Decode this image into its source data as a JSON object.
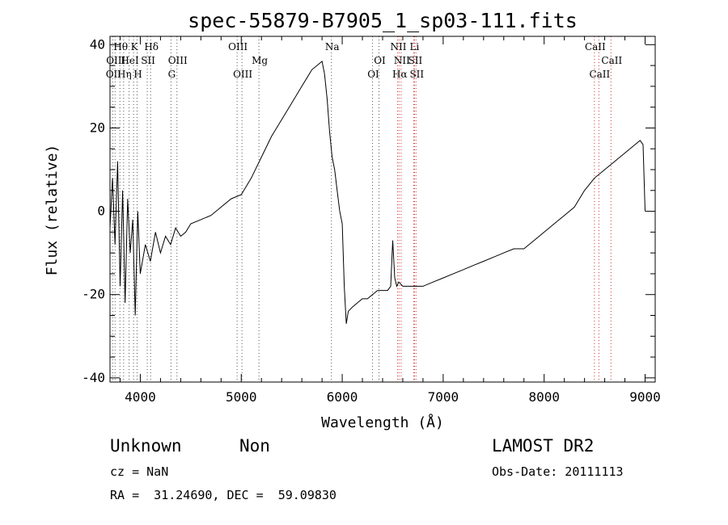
{
  "chart_data": {
    "type": "line",
    "title": "spec-55879-B7905_1_sp03-111.fits",
    "xlabel": "Wavelength (Å)",
    "ylabel": "Flux (relative)",
    "xlim": [
      3700,
      9100
    ],
    "ylim": [
      -41,
      42
    ],
    "xticks": [
      4000,
      5000,
      6000,
      7000,
      8000,
      9000
    ],
    "yticks": [
      -40,
      -20,
      0,
      20,
      40
    ],
    "grid": false,
    "series": [
      {
        "x": [
          3700,
          3725,
          3750,
          3775,
          3800,
          3825,
          3850,
          3875,
          3900,
          3925,
          3950,
          3975,
          4000,
          4050,
          4100,
          4150,
          4200,
          4250,
          4300,
          4350,
          4400,
          4450,
          4500,
          4600,
          4700,
          4800,
          4900,
          5000,
          5100,
          5200,
          5300,
          5400,
          5500,
          5600,
          5700,
          5750,
          5800,
          5825,
          5850,
          5875,
          5900,
          5925,
          5950,
          5975,
          6000,
          6020,
          6040,
          6060,
          6100,
          6150,
          6200,
          6250,
          6300,
          6350,
          6400,
          6450,
          6480,
          6500,
          6520,
          6540,
          6560,
          6600,
          6650,
          6700,
          6750,
          6800,
          6900,
          7000,
          7100,
          7200,
          7300,
          7400,
          7500,
          7600,
          7700,
          7800,
          7900,
          8000,
          8100,
          8200,
          8300,
          8400,
          8500,
          8600,
          8700,
          8800,
          8900,
          8950,
          8980,
          9000
        ],
        "y": [
          -4,
          8,
          -8,
          12,
          -18,
          5,
          -22,
          3,
          -10,
          -2,
          -25,
          0,
          -15,
          -8,
          -12,
          -5,
          -10,
          -6,
          -8,
          -4,
          -6,
          -5,
          -3,
          -2,
          -1,
          1,
          3,
          4,
          8,
          13,
          18,
          22,
          26,
          30,
          34,
          35,
          36,
          33,
          27,
          19,
          13,
          10,
          5,
          0,
          -3,
          -18,
          -27,
          -24,
          -23,
          -22,
          -21,
          -21,
          -20,
          -19,
          -19,
          -19,
          -18,
          -7,
          -16,
          -18,
          -17,
          -18,
          -18,
          -18,
          -18,
          -18,
          -17,
          -16,
          -15,
          -14,
          -13,
          -12,
          -11,
          -10,
          -9,
          -9,
          -7,
          -5,
          -3,
          -1,
          1,
          5,
          8,
          10,
          12,
          14,
          16,
          17,
          16,
          0
        ]
      }
    ],
    "lines": [
      {
        "x": 3727,
        "label": "OII",
        "row": 2,
        "color": "#555555"
      },
      {
        "x": 3750,
        "label": "OIII",
        "row": 1,
        "color": "#555555"
      },
      {
        "x": 3798,
        "label": "Hθ",
        "row": 0,
        "color": "#555555"
      },
      {
        "x": 3835,
        "label": "Hη",
        "row": 2,
        "color": "#555555"
      },
      {
        "x": 3889,
        "label": "HeI",
        "row": 1,
        "color": "#555555"
      },
      {
        "x": 3933,
        "label": "K",
        "row": 0,
        "color": "#555555"
      },
      {
        "x": 3968,
        "label": "H",
        "row": 2,
        "color": "#555555"
      },
      {
        "x": 4069,
        "label": "SII",
        "row": 1,
        "color": "#555555"
      },
      {
        "x": 4102,
        "label": "Hδ",
        "row": 0,
        "color": "#555555"
      },
      {
        "x": 4304,
        "label": "G",
        "row": 2,
        "color": "#555555"
      },
      {
        "x": 4363,
        "label": "OIII",
        "row": 1,
        "color": "#555555"
      },
      {
        "x": 4959,
        "label": "OIII",
        "row": 0,
        "color": "#555555"
      },
      {
        "x": 5007,
        "label": "OIII",
        "row": 2,
        "color": "#555555"
      },
      {
        "x": 5175,
        "label": "Mg",
        "row": 1,
        "color": "#555555"
      },
      {
        "x": 5893,
        "label": "Na",
        "row": 0,
        "color": "#555555"
      },
      {
        "x": 6300,
        "label": "OI",
        "row": 2,
        "color": "#555555"
      },
      {
        "x": 6364,
        "label": "OI",
        "row": 1,
        "color": "#555555"
      },
      {
        "x": 6548,
        "label": "NII",
        "row": 0,
        "color": "#cc3333"
      },
      {
        "x": 6563,
        "label": "Hα",
        "row": 2,
        "color": "#cc3333"
      },
      {
        "x": 6583,
        "label": "NII",
        "row": 1,
        "color": "#cc3333"
      },
      {
        "x": 6708,
        "label": "Li",
        "row": 0,
        "color": "#cc3333"
      },
      {
        "x": 6716,
        "label": "SII",
        "row": 1,
        "color": "#cc3333"
      },
      {
        "x": 6731,
        "label": "SII",
        "row": 2,
        "color": "#cc3333"
      },
      {
        "x": 8498,
        "label": "CaII",
        "row": 0,
        "color": "#cc3333"
      },
      {
        "x": 8542,
        "label": "CaII",
        "row": 2,
        "color": "#cc3333"
      },
      {
        "x": 8662,
        "label": "CaII",
        "row": 1,
        "color": "#cc3333"
      }
    ]
  },
  "info": {
    "class": "Unknown",
    "subclass": "Non",
    "survey": "LAMOST DR2",
    "cz": "cz = NaN",
    "obs_date": "Obs-Date: 20111113",
    "coords": "RA =  31.24690, DEC =  59.09830"
  }
}
